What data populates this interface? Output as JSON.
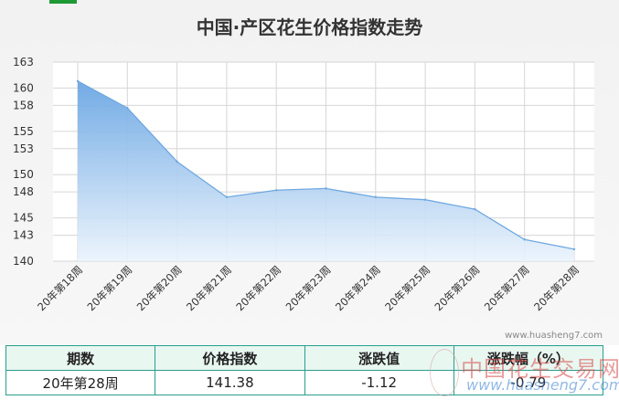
{
  "chart_data": {
    "type": "area",
    "title": "中国·产区花生价格指数走势",
    "xlabel": "",
    "ylabel": "",
    "categories": [
      "20年第18周",
      "20年第19周",
      "20年第20周",
      "20年第21周",
      "20年第22周",
      "20年第23周",
      "20年第24周",
      "20年第25周",
      "20年第26周",
      "20年第27周",
      "20年第28周"
    ],
    "values": [
      160.8,
      157.7,
      151.5,
      147.4,
      148.2,
      148.4,
      147.4,
      147.1,
      146.0,
      142.5,
      141.38
    ],
    "yticks": [
      "163",
      "160",
      "158",
      "155",
      "153",
      "150",
      "148",
      "145",
      "143",
      "140"
    ],
    "ylim": [
      140,
      163
    ],
    "grid": true,
    "legend": "none",
    "colors": {
      "line": "#6fa8e0",
      "fill_top": "#6aa6e3",
      "fill_bottom": "#eaf3fc",
      "grid": "#d6d6d6"
    }
  },
  "watermark_url": "www.huasheng7.com",
  "table": {
    "headers": [
      "期数",
      "价格指数",
      "涨跌值",
      "涨跌幅（%）"
    ],
    "row": [
      "20年第28周",
      "141.38",
      "-1.12",
      "-0.79"
    ]
  },
  "logo": {
    "text": "中国花生交易网",
    "url": "www.huasheng7.com",
    "mark": "花生"
  }
}
